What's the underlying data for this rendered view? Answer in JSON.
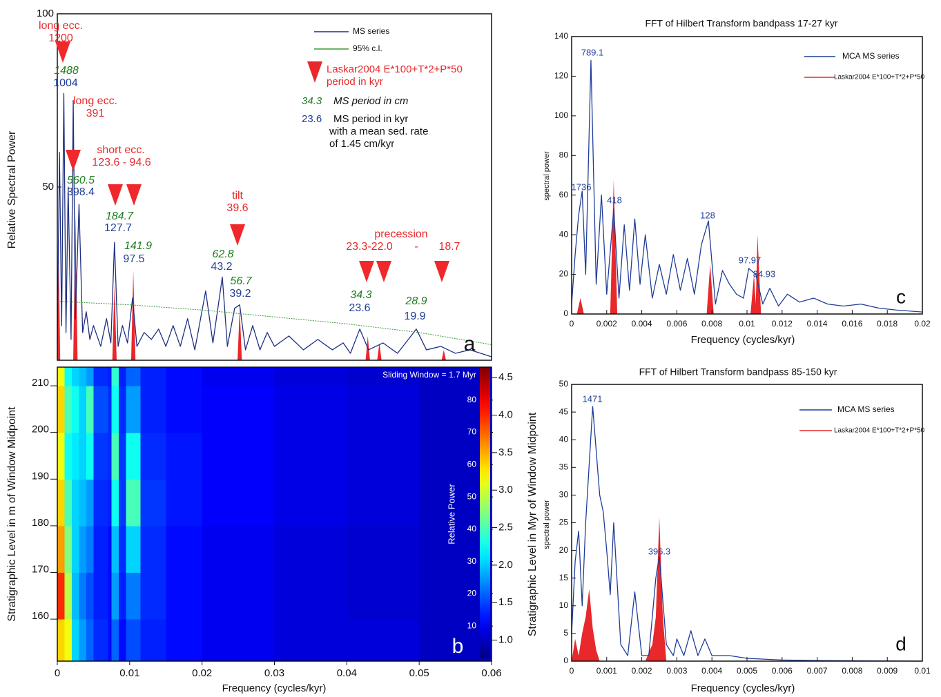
{
  "chart_data": [
    {
      "type": "line",
      "ylabel": "Relative Spectral Power",
      "xlim": [
        0,
        0.06
      ],
      "ylim": [
        0,
        100
      ],
      "yticks": [
        50,
        100
      ],
      "series": [
        {
          "name": "MS series",
          "color": "#1f2f80",
          "x": [
            0,
            0.0003,
            0.0006,
            0.0009,
            0.0012,
            0.0015,
            0.0019,
            0.0022,
            0.0025,
            0.003,
            0.0035,
            0.004,
            0.0045,
            0.005,
            0.006,
            0.0068,
            0.0074,
            0.0079,
            0.0084,
            0.009,
            0.0097,
            0.0104,
            0.011,
            0.012,
            0.013,
            0.014,
            0.015,
            0.016,
            0.017,
            0.018,
            0.019,
            0.0205,
            0.0215,
            0.0228,
            0.0235,
            0.0245,
            0.0252,
            0.026,
            0.027,
            0.028,
            0.029,
            0.03,
            0.032,
            0.034,
            0.036,
            0.038,
            0.0395,
            0.0405,
            0.0418,
            0.043,
            0.045,
            0.047,
            0.0485,
            0.0496,
            0.051,
            0.053,
            0.055,
            0.057,
            0.06
          ],
          "values": [
            5,
            60,
            10,
            77,
            8,
            50,
            6,
            75,
            12,
            45,
            8,
            14,
            6,
            10,
            4,
            12,
            5,
            34,
            4,
            10,
            5,
            18,
            4,
            8,
            6,
            9,
            4,
            10,
            4,
            12,
            3,
            20,
            5,
            24,
            4,
            15,
            16,
            3,
            10,
            3,
            8,
            4,
            7,
            3,
            6,
            3,
            5,
            2,
            9,
            3,
            5,
            2,
            6,
            9,
            3,
            4,
            2,
            3,
            1
          ]
        },
        {
          "name": "95% c.l.",
          "color": "#3a9a3a",
          "dashed": true,
          "x": [
            0,
            0.01,
            0.02,
            0.03,
            0.04,
            0.05,
            0.06
          ],
          "values": [
            17,
            16,
            14.5,
            12.5,
            10.5,
            8,
            4.5
          ]
        },
        {
          "name": "Laskar2004 E*100+T*2+P*50",
          "color": "#e8282b",
          "fill": true,
          "x": [
            0,
            0.0002,
            0.0004,
            0.0006,
            0.0022,
            0.0025,
            0.0028,
            0.0076,
            0.0079,
            0.0082,
            0.0102,
            0.0105,
            0.0108,
            0.0249,
            0.0252,
            0.0255,
            0.0426,
            0.0429,
            0.0432,
            0.0442,
            0.0445,
            0.0448,
            0.0531,
            0.0534,
            0.0537,
            0.06
          ],
          "values": [
            0,
            30,
            0,
            0,
            0,
            42,
            0,
            0,
            22,
            0,
            0,
            26,
            0,
            0,
            15,
            0,
            0,
            7,
            0,
            0,
            5,
            0,
            0,
            3,
            0,
            0
          ]
        }
      ],
      "annotations": [
        {
          "text": "long ecc.",
          "color": "#e8282b"
        },
        {
          "text": "1200",
          "color": "#e8282b"
        },
        {
          "text": "long ecc.",
          "color": "#e8282b"
        },
        {
          "text": "391",
          "color": "#e8282b"
        },
        {
          "text": "short ecc.",
          "color": "#e8282b"
        },
        {
          "text": "123.6 - 94.6",
          "color": "#e8282b"
        },
        {
          "text": "tilt",
          "color": "#e8282b"
        },
        {
          "text": "39.6",
          "color": "#e8282b"
        },
        {
          "text": "precession",
          "color": "#e8282b"
        },
        {
          "text": "23.3-22.0",
          "color": "#e8282b"
        },
        {
          "text": "-",
          "color": "#e8282b"
        },
        {
          "text": "18.7",
          "color": "#e8282b"
        },
        {
          "text": "1488",
          "color": "#1e7d1e",
          "italic": true
        },
        {
          "text": "560.5",
          "color": "#1e7d1e",
          "italic": true
        },
        {
          "text": "184.7",
          "color": "#1e7d1e",
          "italic": true
        },
        {
          "text": "141.9",
          "color": "#1e7d1e",
          "italic": true
        },
        {
          "text": "62.8",
          "color": "#1e7d1e",
          "italic": true
        },
        {
          "text": "56.7",
          "color": "#1e7d1e",
          "italic": true
        },
        {
          "text": "34.3",
          "color": "#1e7d1e",
          "italic": true
        },
        {
          "text": "28.9",
          "color": "#1e7d1e",
          "italic": true
        },
        {
          "text": "1004",
          "color": "#1f3d99"
        },
        {
          "text": "398.4",
          "color": "#1f3d99"
        },
        {
          "text": "127.7",
          "color": "#1f3d99"
        },
        {
          "text": "97.5",
          "color": "#1f3d99"
        },
        {
          "text": "43.2",
          "color": "#1f3d99"
        },
        {
          "text": "39.2",
          "color": "#1f3d99"
        },
        {
          "text": "23.6",
          "color": "#1f3d99"
        },
        {
          "text": "19.9",
          "color": "#1f3d99"
        },
        {
          "text": "period in kyr",
          "color": "#e8282b"
        },
        {
          "text": "34.3",
          "color": "#1e7d1e",
          "italic": true
        },
        {
          "text": "MS period in cm",
          "color": "#111111",
          "italic": true
        },
        {
          "text": "23.6",
          "color": "#1f3d99"
        },
        {
          "text": "MS period in kyr",
          "color": "#111111"
        },
        {
          "text": "with a mean sed. rate",
          "color": "#111111"
        },
        {
          "text": "of 1.45 cm/kyr",
          "color": "#111111"
        },
        {
          "text": "a",
          "color": "#111111"
        }
      ]
    },
    {
      "type": "heatmap",
      "xlabel": "Frequency (cycles/kyr)",
      "ylabel": "Stratigraphic Level in m of Window Midpoint",
      "y2label": "Stratigraphic Level in Myr of Window Midpoint",
      "colorbar_label": "Relative Power",
      "colormap": "jet",
      "xlim": [
        0,
        0.06
      ],
      "xticks": [
        0,
        0.01,
        0.02,
        0.03,
        0.04,
        0.05,
        0.06
      ],
      "ylim": [
        151,
        214
      ],
      "yticks": [
        160,
        170,
        180,
        190,
        200,
        210
      ],
      "y2lim": [
        0.72,
        4.64
      ],
      "y2ticks": [
        {
          "value": 1,
          "label": "1.0"
        },
        1.5,
        {
          "value": 2,
          "label": "2.0"
        },
        2.5,
        {
          "value": 3,
          "label": "3.0"
        },
        3.5,
        {
          "value": 4,
          "label": "4.0"
        },
        4.5
      ],
      "clim": [
        0,
        90
      ],
      "cticks": [
        10,
        20,
        30,
        40,
        50,
        60,
        70,
        80
      ],
      "x_edges": [
        0,
        0.001,
        0.002,
        0.003,
        0.004,
        0.005,
        0.007,
        0.0075,
        0.0085,
        0.0095,
        0.0115,
        0.015,
        0.02,
        0.03,
        0.04,
        0.05,
        0.06
      ],
      "y_edges": [
        151,
        160,
        170,
        180,
        190,
        200,
        210,
        214
      ],
      "values": [
        [
          60,
          55,
          30,
          25,
          20,
          15,
          12,
          20,
          12,
          18,
          14,
          12,
          10,
          8,
          8,
          6
        ],
        [
          75,
          50,
          28,
          22,
          18,
          14,
          12,
          25,
          14,
          22,
          15,
          12,
          10,
          8,
          7,
          6
        ],
        [
          65,
          45,
          30,
          25,
          22,
          14,
          12,
          28,
          15,
          30,
          15,
          12,
          10,
          8,
          7,
          6
        ],
        [
          60,
          40,
          30,
          28,
          25,
          15,
          14,
          35,
          16,
          40,
          16,
          13,
          11,
          9,
          8,
          6
        ],
        [
          55,
          35,
          32,
          30,
          35,
          16,
          15,
          40,
          16,
          35,
          15,
          13,
          11,
          9,
          8,
          6
        ],
        [
          60,
          40,
          35,
          30,
          40,
          18,
          15,
          35,
          15,
          25,
          14,
          12,
          11,
          9,
          8,
          6
        ],
        [
          55,
          35,
          30,
          28,
          25,
          15,
          14,
          38,
          14,
          20,
          14,
          12,
          10,
          8,
          7,
          6
        ]
      ],
      "annotations": [
        {
          "text": "Sliding Window = 1.7 Myr",
          "color": "#ffffff"
        },
        {
          "text": "b",
          "color": "#ffffff"
        }
      ]
    },
    {
      "type": "line",
      "title": "FFT of Hilbert Transform bandpass 17-27 kyr",
      "xlabel": "Frequency (cycles/kyr)",
      "ylabel": "spectral power",
      "xlim": [
        0,
        0.02
      ],
      "xticks": [
        0,
        0.002,
        0.004,
        0.006,
        0.008,
        0.01,
        0.012,
        0.014,
        0.016,
        0.018,
        0.02
      ],
      "ylim": [
        0,
        140
      ],
      "yticks": [
        0,
        20,
        40,
        60,
        80,
        100,
        120,
        140
      ],
      "series": [
        {
          "name": "MCA MS series",
          "color": "#1f3d99",
          "x": [
            0,
            0.0002,
            0.0004,
            0.0006,
            0.0008,
            0.0011,
            0.0014,
            0.0017,
            0.002,
            0.0024,
            0.0027,
            0.003,
            0.0033,
            0.0036,
            0.0039,
            0.0042,
            0.0046,
            0.005,
            0.0054,
            0.0058,
            0.0062,
            0.0066,
            0.007,
            0.0074,
            0.0078,
            0.0082,
            0.0086,
            0.009,
            0.0094,
            0.0098,
            0.0101,
            0.0105,
            0.0109,
            0.0113,
            0.0118,
            0.0123,
            0.013,
            0.0138,
            0.0146,
            0.0155,
            0.0165,
            0.0175,
            0.0185,
            0.02
          ],
          "values": [
            5,
            30,
            50,
            62,
            20,
            128,
            15,
            60,
            10,
            53,
            8,
            45,
            12,
            48,
            15,
            40,
            8,
            25,
            10,
            30,
            12,
            28,
            10,
            35,
            47,
            5,
            22,
            15,
            10,
            8,
            23,
            20,
            5,
            13,
            4,
            10,
            6,
            8,
            5,
            4,
            5,
            3,
            2,
            1
          ]
        },
        {
          "name": "Laskar2004 E*100+T*2+P*50",
          "color": "#e8282b",
          "fill": true,
          "x": [
            0,
            0.0003,
            0.0005,
            0.0007,
            0.0022,
            0.0024,
            0.0026,
            0.0077,
            0.0079,
            0.0081,
            0.0102,
            0.0104,
            0.0105,
            0.0106,
            0.0108,
            0.02
          ],
          "values": [
            0,
            0,
            8,
            0,
            0,
            68,
            0,
            0,
            25,
            0,
            0,
            20,
            5,
            40,
            0,
            0
          ]
        }
      ],
      "annotations": [
        {
          "text": "789.1",
          "color": "#1f3d99"
        },
        {
          "text": "1736",
          "color": "#1f3d99"
        },
        {
          "text": "418",
          "color": "#1f3d99"
        },
        {
          "text": "128",
          "color": "#1f3d99"
        },
        {
          "text": "97.97",
          "color": "#1f3d99"
        },
        {
          "text": "84.93",
          "color": "#1f3d99"
        },
        {
          "text": "c",
          "color": "#111111"
        }
      ]
    },
    {
      "type": "line",
      "title": "FFT of Hilbert Transform bandpass 85-150 kyr",
      "xlabel": "Frequency (cycles/kyr)",
      "ylabel": "spectral power",
      "xlim": [
        0,
        0.01
      ],
      "xticks": [
        0,
        0.001,
        0.002,
        0.003,
        0.004,
        0.005,
        0.006,
        0.007,
        0.008,
        0.009,
        0.01
      ],
      "ylim": [
        0,
        50
      ],
      "yticks": [
        0,
        5,
        10,
        15,
        20,
        25,
        30,
        35,
        40,
        45,
        50
      ],
      "series": [
        {
          "name": "MCA MS series",
          "color": "#1f3d99",
          "x": [
            0,
            0.0001,
            0.0002,
            0.0003,
            0.0004,
            0.0006,
            0.0008,
            0.0009,
            0.001,
            0.0011,
            0.0012,
            0.0014,
            0.0016,
            0.0018,
            0.002,
            0.0022,
            0.0024,
            0.0025,
            0.0027,
            0.0029,
            0.003,
            0.0032,
            0.0034,
            0.0036,
            0.0038,
            0.004,
            0.0045,
            0.005,
            0.006,
            0.007,
            0.01
          ],
          "values": [
            5,
            18,
            23.5,
            10,
            25,
            46,
            30,
            27,
            20,
            12,
            25,
            3,
            1,
            12.5,
            1,
            1,
            15,
            19,
            3,
            1,
            4,
            1,
            5.5,
            1,
            4,
            1,
            1,
            0.5,
            0.2,
            0.1,
            0
          ]
        },
        {
          "name": "Laskar2004 E*100+T*2+P*50",
          "color": "#e8282b",
          "fill": true,
          "x": [
            0,
            0.0001,
            0.0002,
            0.0003,
            0.0004,
            0.0005,
            0.0006,
            0.0007,
            0.0008,
            0.0021,
            0.0023,
            0.0024,
            0.0025,
            0.0026,
            0.0027,
            0.01
          ],
          "values": [
            0,
            4,
            1,
            5,
            8,
            13,
            6,
            2,
            0,
            0,
            3,
            8,
            26,
            8,
            0,
            0
          ]
        }
      ],
      "annotations": [
        {
          "text": "1471",
          "color": "#1f3d99"
        },
        {
          "text": "396.3",
          "color": "#1f3d99"
        },
        {
          "text": "d",
          "color": "#111111"
        }
      ]
    }
  ]
}
